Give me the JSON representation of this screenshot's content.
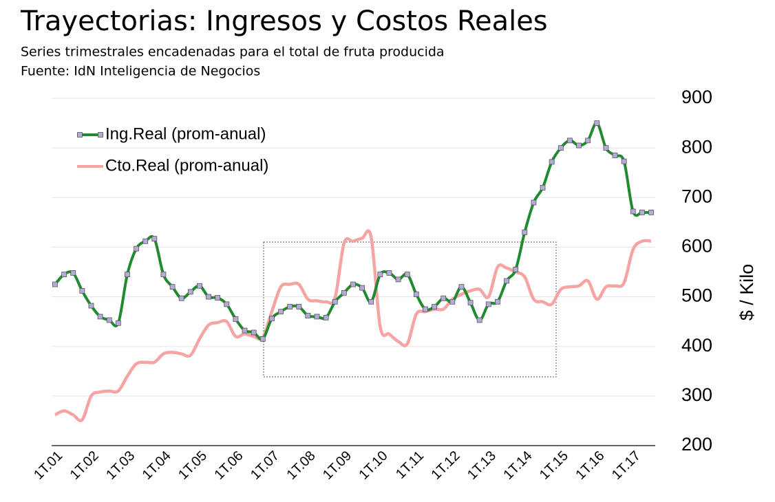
{
  "chart_data": {
    "type": "line",
    "title": "Trayectorias: Ingresos y Costos Reales",
    "subtitle": "Series trimestrales encadenadas para el total de fruta producida",
    "source": "Fuente: IdN Inteligencia de Negocios",
    "y_axis_label": "$ / Kilo",
    "categories": [
      "1T.01",
      null,
      null,
      null,
      "1T.02",
      null,
      null,
      null,
      "1T.03",
      null,
      null,
      null,
      "1T.04",
      null,
      null,
      null,
      "1T.05",
      null,
      null,
      null,
      "1T.06",
      null,
      null,
      null,
      "1T.07",
      null,
      null,
      null,
      "1T.08",
      null,
      null,
      null,
      "1T.09",
      null,
      null,
      null,
      "1T.10",
      null,
      null,
      null,
      "1T.11",
      null,
      null,
      null,
      "1T.12",
      null,
      null,
      null,
      "1T.13",
      null,
      null,
      null,
      "1T.14",
      null,
      null,
      null,
      "1T.15",
      null,
      null,
      null,
      "1T.16",
      null,
      null,
      null,
      "1T.17",
      null,
      null
    ],
    "series": [
      {
        "name": "Ing.Real (prom-anual)",
        "color": "#1f8a2e",
        "marker_color": "#b4abd8",
        "values": [
          525,
          545,
          548,
          512,
          482,
          460,
          453,
          447,
          545,
          597,
          612,
          617,
          545,
          520,
          497,
          510,
          522,
          500,
          498,
          485,
          455,
          432,
          428,
          415,
          456,
          470,
          480,
          480,
          462,
          460,
          458,
          490,
          508,
          525,
          518,
          490,
          545,
          548,
          535,
          545,
          505,
          475,
          480,
          497,
          490,
          520,
          488,
          453,
          485,
          490,
          532,
          555,
          630,
          690,
          720,
          772,
          800,
          815,
          805,
          815,
          850,
          800,
          785,
          773,
          672,
          670,
          670
        ]
      },
      {
        "name": "Cto.Real (prom-anual)",
        "color": "#f6a3a3",
        "values": [
          262,
          270,
          262,
          252,
          300,
          308,
          310,
          310,
          340,
          365,
          368,
          368,
          385,
          388,
          385,
          382,
          415,
          443,
          448,
          450,
          420,
          425,
          420,
          418,
          470,
          520,
          525,
          525,
          495,
          492,
          490,
          498,
          608,
          612,
          618,
          620,
          440,
          425,
          410,
          405,
          465,
          470,
          475,
          475,
          495,
          505,
          512,
          515,
          500,
          560,
          558,
          550,
          540,
          495,
          490,
          485,
          515,
          520,
          522,
          532,
          495,
          520,
          522,
          528,
          595,
          612,
          612
        ]
      }
    ],
    "ylim": [
      200,
      900
    ],
    "yticks": [
      200,
      300,
      400,
      500,
      600,
      700,
      800,
      900
    ],
    "grid": true,
    "legend": "upper left"
  }
}
